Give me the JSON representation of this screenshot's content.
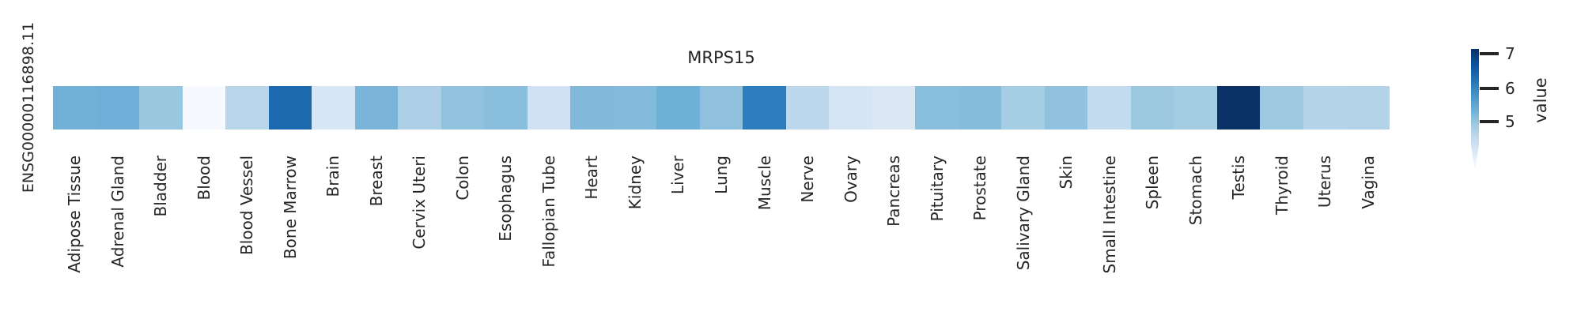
{
  "figure": {
    "title": "MRPS15",
    "row_label": "ENSG00000116898.11",
    "text_color": "#262626",
    "colorbar": {
      "label": "value",
      "ticks": [
        "7",
        "6",
        "5"
      ]
    }
  },
  "chart_data": {
    "type": "heatmap",
    "title": "MRPS15",
    "rows": [
      "ENSG00000116898.11"
    ],
    "categories": [
      "Adipose Tissue",
      "Adrenal Gland",
      "Bladder",
      "Blood",
      "Blood Vessel",
      "Bone Marrow",
      "Brain",
      "Breast",
      "Cervix Uteri",
      "Colon",
      "Esophagus",
      "Fallopian Tube",
      "Heart",
      "Kidney",
      "Liver",
      "Lung",
      "Muscle",
      "Nerve",
      "Ovary",
      "Pancreas",
      "Pituitary",
      "Prostate",
      "Salivary Gland",
      "Skin",
      "Small Intestine",
      "Spleen",
      "Stomach",
      "Testis",
      "Thyroid",
      "Uterus",
      "Vagina"
    ],
    "values": [
      [
        5.4,
        5.4,
        5.0,
        3.7,
        4.75,
        6.4,
        4.25,
        5.3,
        4.85,
        5.1,
        5.2,
        4.4,
        5.25,
        5.25,
        5.4,
        5.15,
        6.1,
        4.7,
        4.3,
        4.2,
        5.2,
        5.25,
        4.95,
        5.15,
        4.6,
        5.0,
        4.95,
        7.1,
        5.0,
        4.75,
        4.75
      ]
    ],
    "cell_colors": [
      [
        "#72b1d7",
        "#6fafd7",
        "#9ac7e0",
        "#f6faff",
        "#b8d5ea",
        "#1c69b0",
        "#d7e6f5",
        "#7ab4d9",
        "#adcfe6",
        "#92c3de",
        "#89bedc",
        "#cfe1f2",
        "#82b8da",
        "#84badb",
        "#6fb0d7",
        "#8fc1de",
        "#2d7cbb",
        "#bdd7ec",
        "#d6e5f4",
        "#dce7f4",
        "#8abedd",
        "#85bbdb",
        "#a5cde3",
        "#90c1de",
        "#c3dbee",
        "#9cc8e0",
        "#a3cbe2",
        "#0a3266",
        "#9fc9e1",
        "#b5d3e9",
        "#b4d3e9"
      ]
    ],
    "colorbar": {
      "label": "value",
      "tick_values": [
        5,
        6,
        7
      ],
      "vmin": 3.6,
      "vmax": 7.15,
      "colormap": "Blues"
    },
    "legend_position": "right",
    "grid": false
  }
}
